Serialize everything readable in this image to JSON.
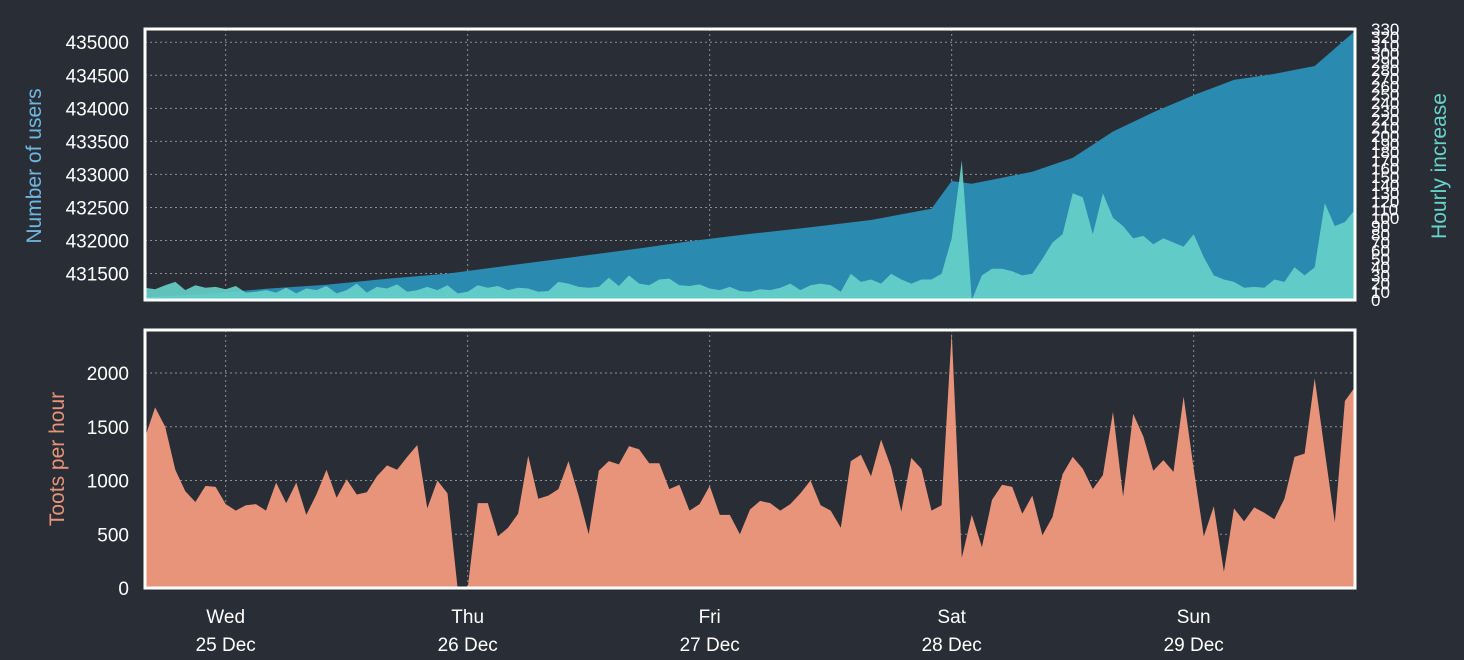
{
  "colors": {
    "background": "#292d36",
    "users_fill": "#2b8ab0",
    "hourly_fill": "#67d3ca",
    "toots_fill": "#e8947a",
    "frame": "#ffffff",
    "users_label": "#6fb6e0",
    "hourly_label": "#67d3ca",
    "toots_label": "#e8947a"
  },
  "chart_data": [
    {
      "type": "area",
      "panel": "top",
      "ylabel": "Number of users",
      "y2label": "Hourly increase",
      "xlim_hours": [
        0,
        120
      ],
      "ylim": [
        431100,
        435200
      ],
      "y2lim": [
        0,
        330
      ],
      "yticks": [
        431500,
        432000,
        432500,
        433000,
        433500,
        434000,
        434500,
        435000
      ],
      "y2ticks": [
        0,
        10,
        20,
        30,
        40,
        50,
        60,
        70,
        80,
        90,
        100,
        110,
        120,
        130,
        140,
        150,
        160,
        170,
        180,
        190,
        200,
        210,
        220,
        230,
        240,
        250,
        260,
        270,
        280,
        290,
        300,
        310,
        320,
        330
      ],
      "grid": true,
      "series": [
        {
          "name": "Number of users",
          "axis": "left",
          "points": [
            [
              0,
              431140
            ],
            [
              6,
              431190
            ],
            [
              12,
              431270
            ],
            [
              18,
              431330
            ],
            [
              24,
              431420
            ],
            [
              30,
              431500
            ],
            [
              36,
              431620
            ],
            [
              42,
              431740
            ],
            [
              48,
              431860
            ],
            [
              54,
              431990
            ],
            [
              60,
              432100
            ],
            [
              66,
              432200
            ],
            [
              72,
              432310
            ],
            [
              78,
              432480
            ],
            [
              80,
              432900
            ],
            [
              82,
              432860
            ],
            [
              84,
              432920
            ],
            [
              88,
              433040
            ],
            [
              92,
              433250
            ],
            [
              96,
              433650
            ],
            [
              100,
              433940
            ],
            [
              104,
              434200
            ],
            [
              108,
              434430
            ],
            [
              112,
              434520
            ],
            [
              116,
              434640
            ],
            [
              120,
              435170
            ]
          ]
        },
        {
          "name": "Hourly increase",
          "axis": "right",
          "points": [
            [
              0,
              15
            ],
            [
              1,
              13
            ],
            [
              2,
              18
            ],
            [
              3,
              22
            ],
            [
              4,
              12
            ],
            [
              5,
              18
            ],
            [
              6,
              15
            ],
            [
              7,
              16
            ],
            [
              8,
              13
            ],
            [
              9,
              17
            ],
            [
              10,
              9
            ],
            [
              11,
              10
            ],
            [
              12,
              12
            ],
            [
              13,
              9
            ],
            [
              14,
              15
            ],
            [
              15,
              8
            ],
            [
              16,
              14
            ],
            [
              17,
              12
            ],
            [
              18,
              17
            ],
            [
              19,
              8
            ],
            [
              20,
              12
            ],
            [
              21,
              20
            ],
            [
              22,
              9
            ],
            [
              23,
              16
            ],
            [
              24,
              14
            ],
            [
              25,
              19
            ],
            [
              26,
              10
            ],
            [
              27,
              12
            ],
            [
              28,
              16
            ],
            [
              29,
              12
            ],
            [
              30,
              18
            ],
            [
              31,
              8
            ],
            [
              32,
              10
            ],
            [
              33,
              18
            ],
            [
              34,
              15
            ],
            [
              35,
              17
            ],
            [
              36,
              12
            ],
            [
              37,
              15
            ],
            [
              38,
              14
            ],
            [
              39,
              10
            ],
            [
              40,
              11
            ],
            [
              41,
              22
            ],
            [
              42,
              20
            ],
            [
              43,
              16
            ],
            [
              44,
              15
            ],
            [
              45,
              16
            ],
            [
              46,
              27
            ],
            [
              47,
              17
            ],
            [
              48,
              30
            ],
            [
              49,
              20
            ],
            [
              50,
              18
            ],
            [
              51,
              25
            ],
            [
              52,
              26
            ],
            [
              53,
              18
            ],
            [
              54,
              17
            ],
            [
              55,
              19
            ],
            [
              56,
              14
            ],
            [
              57,
              12
            ],
            [
              58,
              16
            ],
            [
              59,
              11
            ],
            [
              60,
              10
            ],
            [
              61,
              13
            ],
            [
              62,
              12
            ],
            [
              63,
              15
            ],
            [
              64,
              20
            ],
            [
              65,
              12
            ],
            [
              66,
              18
            ],
            [
              67,
              20
            ],
            [
              68,
              18
            ],
            [
              69,
              10
            ],
            [
              70,
              32
            ],
            [
              71,
              22
            ],
            [
              72,
              25
            ],
            [
              73,
              20
            ],
            [
              74,
              32
            ],
            [
              75,
              25
            ],
            [
              76,
              20
            ],
            [
              77,
              25
            ],
            [
              78,
              25
            ],
            [
              79,
              32
            ],
            [
              80,
              75
            ],
            [
              81,
              170
            ],
            [
              82,
              0
            ],
            [
              83,
              30
            ],
            [
              84,
              38
            ],
            [
              85,
              38
            ],
            [
              86,
              35
            ],
            [
              87,
              30
            ],
            [
              88,
              32
            ],
            [
              89,
              50
            ],
            [
              90,
              70
            ],
            [
              91,
              80
            ],
            [
              92,
              130
            ],
            [
              93,
              125
            ],
            [
              94,
              80
            ],
            [
              95,
              130
            ],
            [
              96,
              100
            ],
            [
              97,
              90
            ],
            [
              98,
              75
            ],
            [
              99,
              78
            ],
            [
              100,
              68
            ],
            [
              101,
              75
            ],
            [
              102,
              70
            ],
            [
              103,
              65
            ],
            [
              104,
              80
            ],
            [
              105,
              52
            ],
            [
              106,
              30
            ],
            [
              107,
              25
            ],
            [
              108,
              22
            ],
            [
              109,
              15
            ],
            [
              110,
              16
            ],
            [
              111,
              15
            ],
            [
              112,
              25
            ],
            [
              113,
              22
            ],
            [
              114,
              40
            ],
            [
              115,
              30
            ],
            [
              116,
              40
            ],
            [
              117,
              118
            ],
            [
              118,
              90
            ],
            [
              119,
              95
            ],
            [
              120,
              110
            ]
          ]
        }
      ]
    },
    {
      "type": "area",
      "panel": "bottom",
      "ylabel": "Toots per hour",
      "xlim_hours": [
        0,
        120
      ],
      "ylim": [
        0,
        2400
      ],
      "yticks": [
        0,
        500,
        1000,
        1500,
        2000
      ],
      "grid": true,
      "series": [
        {
          "name": "Toots per hour",
          "axis": "left",
          "points": [
            [
              0,
              1400
            ],
            [
              1,
              1680
            ],
            [
              2,
              1500
            ],
            [
              3,
              1100
            ],
            [
              4,
              900
            ],
            [
              5,
              800
            ],
            [
              6,
              950
            ],
            [
              7,
              940
            ],
            [
              8,
              780
            ],
            [
              9,
              720
            ],
            [
              10,
              770
            ],
            [
              11,
              780
            ],
            [
              12,
              720
            ],
            [
              13,
              980
            ],
            [
              14,
              790
            ],
            [
              15,
              980
            ],
            [
              16,
              680
            ],
            [
              17,
              870
            ],
            [
              18,
              1100
            ],
            [
              19,
              840
            ],
            [
              20,
              1010
            ],
            [
              21,
              870
            ],
            [
              22,
              890
            ],
            [
              23,
              1040
            ],
            [
              24,
              1140
            ],
            [
              25,
              1100
            ],
            [
              26,
              1220
            ],
            [
              27,
              1330
            ],
            [
              28,
              740
            ],
            [
              29,
              1000
            ],
            [
              30,
              880
            ],
            [
              31,
              0
            ],
            [
              32,
              0
            ],
            [
              33,
              790
            ],
            [
              34,
              790
            ],
            [
              35,
              480
            ],
            [
              36,
              560
            ],
            [
              37,
              690
            ],
            [
              38,
              1230
            ],
            [
              39,
              830
            ],
            [
              40,
              860
            ],
            [
              41,
              920
            ],
            [
              42,
              1180
            ],
            [
              43,
              860
            ],
            [
              44,
              500
            ],
            [
              45,
              1090
            ],
            [
              46,
              1180
            ],
            [
              47,
              1150
            ],
            [
              48,
              1320
            ],
            [
              49,
              1290
            ],
            [
              50,
              1160
            ],
            [
              51,
              1160
            ],
            [
              52,
              920
            ],
            [
              53,
              960
            ],
            [
              54,
              720
            ],
            [
              55,
              780
            ],
            [
              56,
              950
            ],
            [
              57,
              680
            ],
            [
              58,
              680
            ],
            [
              59,
              500
            ],
            [
              60,
              730
            ],
            [
              61,
              810
            ],
            [
              62,
              790
            ],
            [
              63,
              720
            ],
            [
              64,
              780
            ],
            [
              65,
              880
            ],
            [
              66,
              1000
            ],
            [
              67,
              770
            ],
            [
              68,
              720
            ],
            [
              69,
              560
            ],
            [
              70,
              1180
            ],
            [
              71,
              1240
            ],
            [
              72,
              1040
            ],
            [
              73,
              1380
            ],
            [
              74,
              1120
            ],
            [
              75,
              710
            ],
            [
              76,
              1210
            ],
            [
              77,
              1110
            ],
            [
              78,
              720
            ],
            [
              79,
              770
            ],
            [
              80,
              2380
            ],
            [
              81,
              280
            ],
            [
              82,
              680
            ],
            [
              83,
              380
            ],
            [
              84,
              820
            ],
            [
              85,
              960
            ],
            [
              86,
              940
            ],
            [
              87,
              690
            ],
            [
              88,
              860
            ],
            [
              89,
              490
            ],
            [
              90,
              660
            ],
            [
              91,
              1060
            ],
            [
              92,
              1220
            ],
            [
              93,
              1110
            ],
            [
              94,
              920
            ],
            [
              95,
              1050
            ],
            [
              96,
              1640
            ],
            [
              97,
              850
            ],
            [
              98,
              1620
            ],
            [
              99,
              1410
            ],
            [
              100,
              1090
            ],
            [
              101,
              1190
            ],
            [
              102,
              1080
            ],
            [
              103,
              1780
            ],
            [
              104,
              1110
            ],
            [
              105,
              480
            ],
            [
              106,
              760
            ],
            [
              107,
              150
            ],
            [
              108,
              740
            ],
            [
              109,
              620
            ],
            [
              110,
              750
            ],
            [
              111,
              700
            ],
            [
              112,
              640
            ],
            [
              113,
              830
            ],
            [
              114,
              1220
            ],
            [
              115,
              1250
            ],
            [
              116,
              1950
            ],
            [
              117,
              1270
            ],
            [
              118,
              610
            ],
            [
              119,
              1740
            ],
            [
              120,
              1870
            ]
          ]
        }
      ]
    }
  ],
  "x_axis": {
    "ticks": [
      {
        "hour": 8,
        "day": "Wed",
        "date": "25 Dec"
      },
      {
        "hour": 32,
        "day": "Thu",
        "date": "26 Dec"
      },
      {
        "hour": 56,
        "day": "Fri",
        "date": "27 Dec"
      },
      {
        "hour": 80,
        "day": "Sat",
        "date": "28 Dec"
      },
      {
        "hour": 104,
        "day": "Sun",
        "date": "29 Dec"
      }
    ]
  }
}
